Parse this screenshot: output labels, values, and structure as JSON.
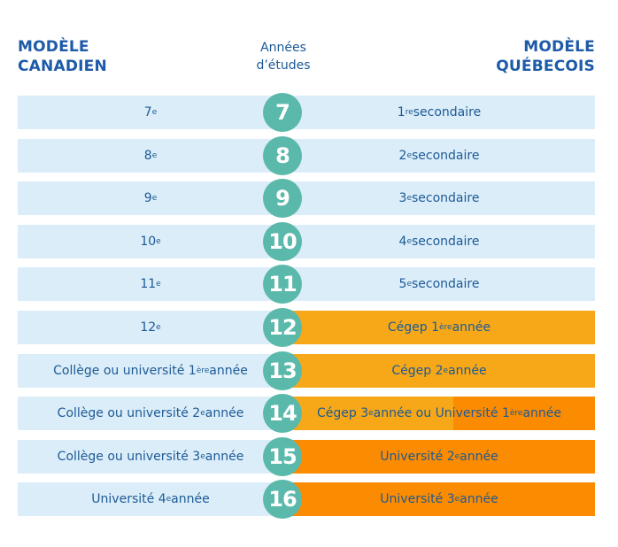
{
  "header": {
    "left_title": [
      "MODÈLE",
      "CANADIEN"
    ],
    "middle_title": [
      "Années",
      "d’études"
    ],
    "right_title": [
      "MODÈLE",
      "QUÉBECOIS"
    ]
  },
  "colors": {
    "light_blue": "#dbedf8",
    "teal_circle": "#5bb9ab",
    "orange_light": "#f6a819",
    "orange_dark": "#fb8b00",
    "text_blue": "#1d5a96"
  },
  "rows": [
    {
      "year": "7",
      "canadian": "7e",
      "quebec": "1re secondaire",
      "quebec_style": "blue"
    },
    {
      "year": "8",
      "canadian": "8e",
      "quebec": "2e secondaire",
      "quebec_style": "blue"
    },
    {
      "year": "9",
      "canadian": "9e",
      "quebec": "3e secondaire",
      "quebec_style": "blue"
    },
    {
      "year": "10",
      "canadian": "10e",
      "quebec": "4e secondaire",
      "quebec_style": "blue"
    },
    {
      "year": "11",
      "canadian": "11e",
      "quebec": "5e secondaire",
      "quebec_style": "blue"
    },
    {
      "year": "12",
      "canadian": "12e",
      "quebec": "Cégep 1ère année",
      "quebec_style": "orange-light"
    },
    {
      "year": "13",
      "canadian": "Collège ou université 1ère année",
      "quebec": "Cégep 2e année",
      "quebec_style": "orange-light"
    },
    {
      "year": "14",
      "canadian": "Collège ou université 2e année",
      "quebec": "Cégep 3e année ou Université 1ère année",
      "quebec_style": "split"
    },
    {
      "year": "15",
      "canadian": "Collège ou université 3e année",
      "quebec": "Université 2e année",
      "quebec_style": "orange-dark"
    },
    {
      "year": "16",
      "canadian": "Université 4e année",
      "quebec": "Université 3e année",
      "quebec_style": "orange-dark"
    }
  ]
}
